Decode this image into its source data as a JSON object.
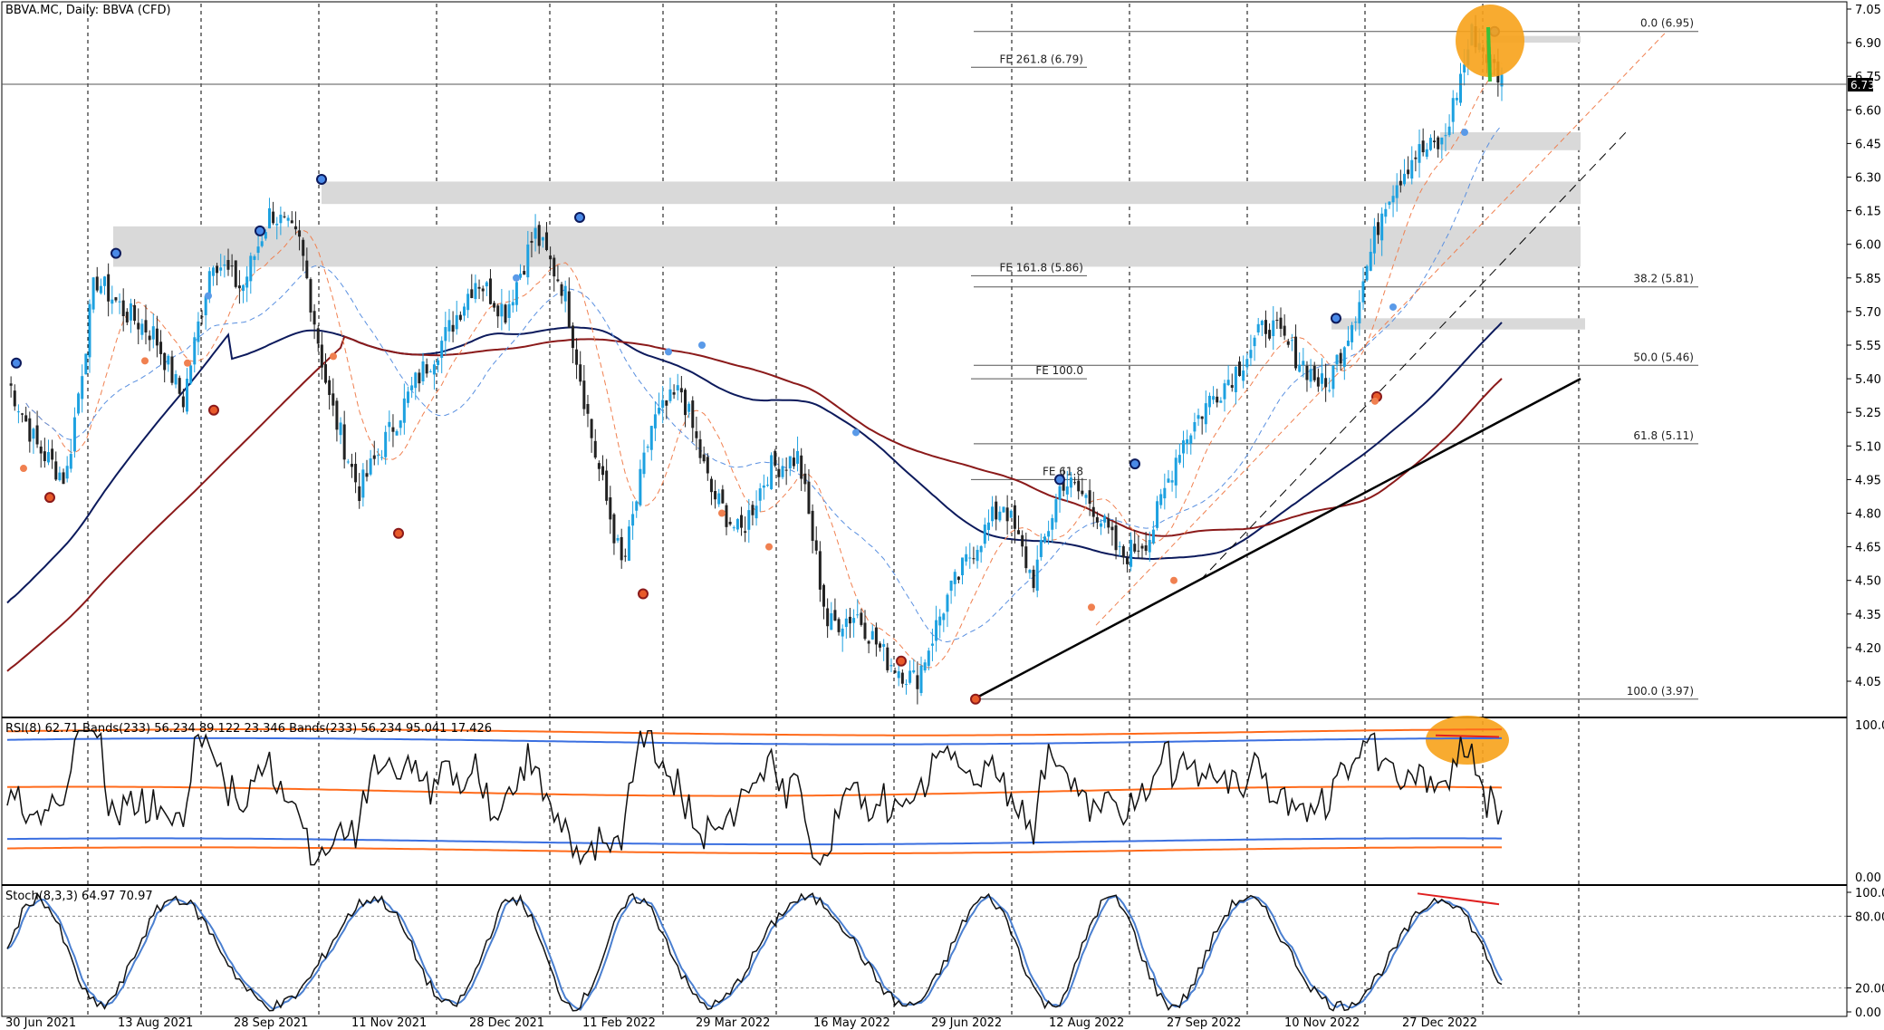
{
  "window_title": "BBVA.MC, Daily:  BBVA (CFD)",
  "current_price": "6.73",
  "price_axis_ticks": [
    "7.05",
    "6.90",
    "6.75",
    "6.60",
    "6.45",
    "6.30",
    "6.15",
    "6.00",
    "5.85",
    "5.70",
    "5.55",
    "5.40",
    "5.25",
    "5.10",
    "4.95",
    "4.80",
    "4.65",
    "4.50",
    "4.35",
    "4.20",
    "4.05"
  ],
  "date_axis_ticks": [
    "30 Jun 2021",
    "13 Aug 2021",
    "28 Sep 2021",
    "11 Nov 2021",
    "28 Dec 2021",
    "11 Feb 2022",
    "29 Mar 2022",
    "16 May 2022",
    "29 Jun 2022",
    "12 Aug 2022",
    "27 Sep 2022",
    "10 Nov 2022",
    "27 Dec 2022"
  ],
  "fib_retracement_labels": [
    "0.0 (6.95)",
    "38.2 (5.81)",
    "50.0 (5.46)",
    "61.8 (5.11)",
    "100.0 (3.97)"
  ],
  "fib_expansion_labels": [
    "FE 261.8 (6.79)",
    "FE 161.8 (5.86)",
    "FE 100.0",
    "FE 61.8"
  ],
  "rsi_label": "RSI(8) 62.71 Bands(233) 56.234 89.122 23.346 Bands(233) 56.234 95.041 17.426",
  "rsi_axis_ticks": [
    "100.00",
    "0.00"
  ],
  "stoch_label": "Stoch(8,3,3) 64.97 70.97",
  "stoch_axis_ticks": [
    "100.00",
    "80.00",
    "20.00",
    "0.00"
  ],
  "colors": {
    "bull_candle": "#1da1e0",
    "bear_candle": "#222222",
    "ma_navy": "#0c1a5c",
    "ma_darkred": "#8b1a1a",
    "ma_orange_dash": "#f08050",
    "ma_blue_dash": "#5a90e0",
    "zone_fill": "#d9d9d9",
    "highlight": "#f7a21a",
    "rsi_orange": "#ff6a1a",
    "rsi_blue": "#3a6fe0",
    "stoch_main": "#111111",
    "stoch_signal": "#4a7fd0",
    "divergence": "#e02020"
  },
  "chart_data": [
    {
      "type": "candlestick",
      "title": "BBVA.MC, Daily:  BBVA (CFD)",
      "ylim": [
        3.97,
        7.1
      ],
      "x_range": [
        "30 Jun 2021",
        "Jan 2023"
      ],
      "close_points": [
        {
          "x": "30 Jun 2021",
          "y": 5.4
        },
        {
          "x": "13 Jul 2021",
          "y": 5.1
        },
        {
          "x": "23 Jul 2021",
          "y": 4.95
        },
        {
          "x": "13 Aug 2021",
          "y": 5.85
        },
        {
          "x": "25 Aug 2021",
          "y": 5.7
        },
        {
          "x": "10 Sep 2021",
          "y": 5.6
        },
        {
          "x": "22 Sep 2021",
          "y": 5.3
        },
        {
          "x": "28 Sep 2021",
          "y": 5.95
        },
        {
          "x": "14 Oct 2021",
          "y": 5.8
        },
        {
          "x": "26 Oct 2021",
          "y": 6.15
        },
        {
          "x": "3 Nov 2021",
          "y": 6.0
        },
        {
          "x": "11 Nov 2021",
          "y": 5.3
        },
        {
          "x": "22 Nov 2021",
          "y": 4.9
        },
        {
          "x": "1 Dec 2021",
          "y": 5.15
        },
        {
          "x": "15 Dec 2021",
          "y": 5.4
        },
        {
          "x": "28 Dec 2021",
          "y": 5.6
        },
        {
          "x": "12 Jan 2022",
          "y": 5.85
        },
        {
          "x": "25 Jan 2022",
          "y": 5.7
        },
        {
          "x": "3 Feb 2022",
          "y": 6.05
        },
        {
          "x": "11 Feb 2022",
          "y": 5.8
        },
        {
          "x": "28 Feb 2022",
          "y": 5.1
        },
        {
          "x": "7 Mar 2022",
          "y": 4.55
        },
        {
          "x": "17 Mar 2022",
          "y": 5.2
        },
        {
          "x": "29 Mar 2022",
          "y": 5.35
        },
        {
          "x": "12 Apr 2022",
          "y": 4.9
        },
        {
          "x": "28 Apr 2022",
          "y": 4.7
        },
        {
          "x": "16 May 2022",
          "y": 5.0
        },
        {
          "x": "30 May 2022",
          "y": 5.05
        },
        {
          "x": "9 Jun 2022",
          "y": 4.3
        },
        {
          "x": "20 Jun 2022",
          "y": 4.35
        },
        {
          "x": "29 Jun 2022",
          "y": 4.15
        },
        {
          "x": "6 Jul 2022",
          "y": 4.05
        },
        {
          "x": "20 Jul 2022",
          "y": 4.4
        },
        {
          "x": "3 Aug 2022",
          "y": 4.65
        },
        {
          "x": "12 Aug 2022",
          "y": 4.85
        },
        {
          "x": "24 Aug 2022",
          "y": 4.5
        },
        {
          "x": "7 Sep 2022",
          "y": 4.95
        },
        {
          "x": "19 Sep 2022",
          "y": 4.85
        },
        {
          "x": "27 Sep 2022",
          "y": 4.6
        },
        {
          "x": "7 Oct 2022",
          "y": 4.7
        },
        {
          "x": "20 Oct 2022",
          "y": 5.1
        },
        {
          "x": "3 Nov 2022",
          "y": 5.3
        },
        {
          "x": "10 Nov 2022",
          "y": 5.45
        },
        {
          "x": "22 Nov 2022",
          "y": 5.65
        },
        {
          "x": "2 Dec 2022",
          "y": 5.5
        },
        {
          "x": "14 Dec 2022",
          "y": 5.35
        },
        {
          "x": "27 Dec 2022",
          "y": 5.7
        },
        {
          "x": "4 Jan 2023",
          "y": 6.2
        },
        {
          "x": "13 Jan 2023",
          "y": 6.4
        },
        {
          "x": "24 Jan 2023",
          "y": 6.45
        },
        {
          "x": "2 Feb 2023",
          "y": 6.95
        },
        {
          "x": "9 Feb 2023",
          "y": 6.73
        }
      ],
      "indicators": [
        "SMA navy",
        "SMA dark red",
        "dashed orange MA",
        "dashed blue MA"
      ]
    },
    {
      "type": "line",
      "title": "RSI(8) 62.71 Bands(233) 56.234 89.122 23.346 Bands(233) 56.234 95.041 17.426",
      "ylim": [
        0,
        100
      ],
      "series": [
        {
          "name": "RSI(8)",
          "last_value": 62.71
        },
        {
          "name": "Bands(233) 56.234 89.122 23.346",
          "values": [
            56.234,
            89.122,
            23.346
          ]
        },
        {
          "name": "Bands(233) 56.234 95.041 17.426",
          "values": [
            56.234,
            95.041,
            17.426
          ]
        }
      ]
    },
    {
      "type": "line",
      "title": "Stoch(8,3,3) 64.97 70.97",
      "ylim": [
        0,
        100
      ],
      "levels": [
        20,
        80
      ],
      "series": [
        {
          "name": "%K",
          "last_value": 64.97
        },
        {
          "name": "%D",
          "last_value": 70.97
        }
      ]
    }
  ]
}
